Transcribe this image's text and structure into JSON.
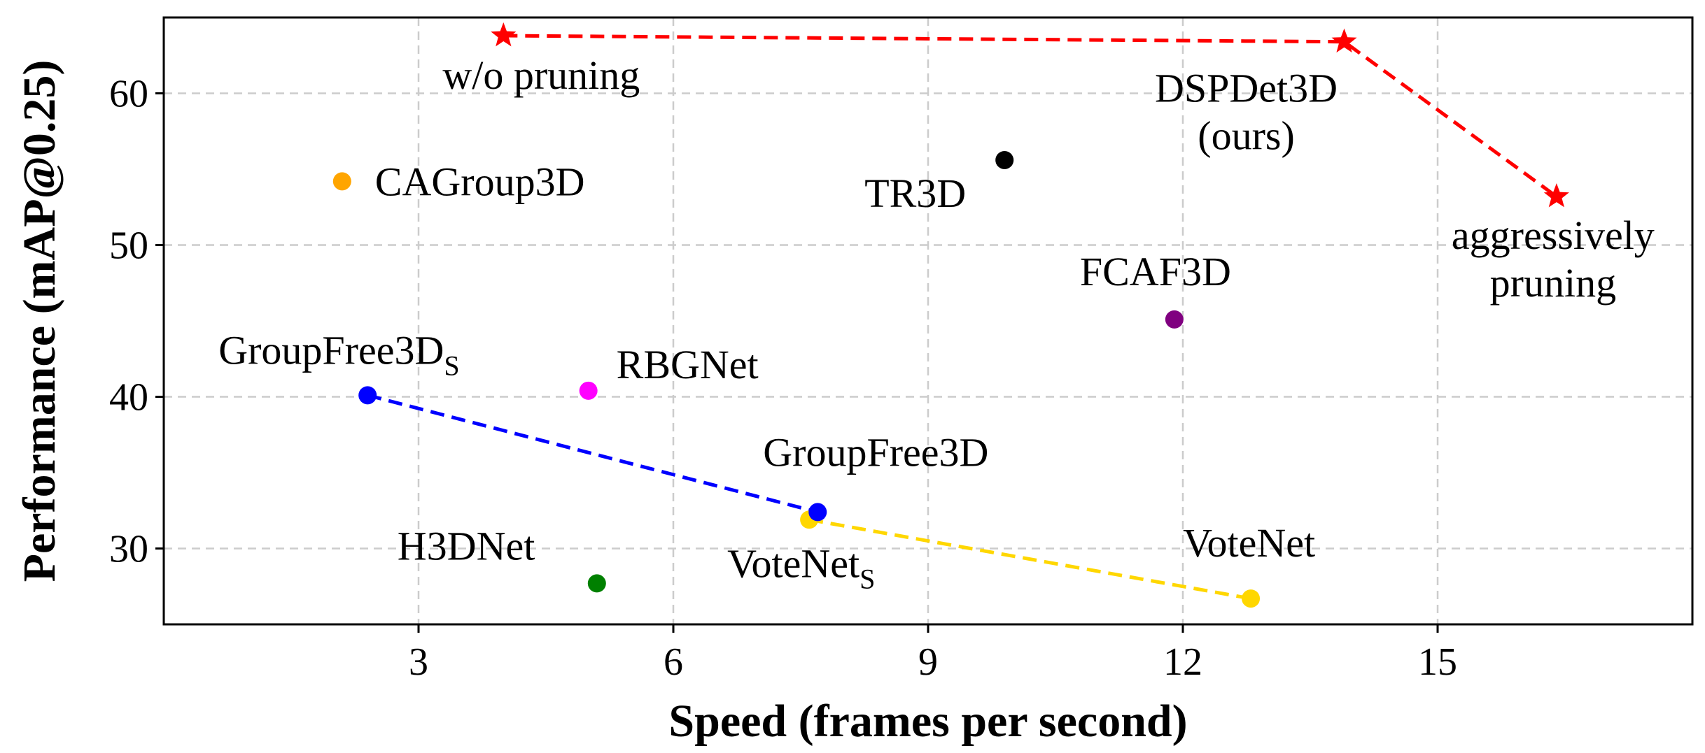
{
  "chart_data": {
    "type": "scatter",
    "xlabel": "Speed (frames per second)",
    "ylabel": "Performance (mAP@0.25)",
    "xlim": [
      0,
      18
    ],
    "ylim": [
      25,
      65
    ],
    "xticks": [
      3,
      6,
      9,
      12,
      15
    ],
    "yticks": [
      30,
      40,
      50,
      60
    ],
    "grid": true,
    "points": [
      {
        "label": "CAGroup3D",
        "sub": "",
        "x": 2.1,
        "y": 54.2,
        "color": "#ffa500",
        "marker": "circle"
      },
      {
        "label": "GroupFree3D",
        "sub": "S",
        "x": 2.4,
        "y": 40.1,
        "color": "#0000ff",
        "marker": "circle"
      },
      {
        "label": "RBGNet",
        "sub": "",
        "x": 5.0,
        "y": 40.4,
        "color": "#ff00ff",
        "marker": "circle"
      },
      {
        "label": "H3DNet",
        "sub": "",
        "x": 5.1,
        "y": 27.7,
        "color": "#008000",
        "marker": "circle"
      },
      {
        "label": "VoteNet",
        "sub": "S",
        "x": 7.6,
        "y": 31.9,
        "color": "#ffd700",
        "marker": "circle"
      },
      {
        "label": "GroupFree3D",
        "sub": "",
        "x": 7.7,
        "y": 32.4,
        "color": "#0000ff",
        "marker": "circle"
      },
      {
        "label": "TR3D",
        "sub": "",
        "x": 9.9,
        "y": 55.6,
        "color": "#000000",
        "marker": "circle"
      },
      {
        "label": "FCAF3D",
        "sub": "",
        "x": 11.9,
        "y": 45.1,
        "color": "#800080",
        "marker": "circle"
      },
      {
        "label": "VoteNet",
        "sub": "",
        "x": 12.8,
        "y": 26.7,
        "color": "#ffd700",
        "marker": "circle"
      },
      {
        "label": "w/o pruning",
        "sub": "",
        "x": 4.0,
        "y": 63.8,
        "color": "#ff0000",
        "marker": "star"
      },
      {
        "label": "DSPDet3D\n(ours)",
        "sub": "",
        "x": 13.9,
        "y": 63.4,
        "color": "#ff0000",
        "marker": "star"
      },
      {
        "label": "aggressively\npruning",
        "sub": "",
        "x": 16.4,
        "y": 53.2,
        "color": "#ff0000",
        "marker": "star"
      }
    ],
    "lines": [
      {
        "color": "#ff0000",
        "style": "dashed",
        "points": [
          [
            4.0,
            63.8
          ],
          [
            13.9,
            63.4
          ],
          [
            16.4,
            53.2
          ]
        ]
      },
      {
        "color": "#0000ff",
        "style": "dashed",
        "points": [
          [
            2.4,
            40.1
          ],
          [
            7.7,
            32.4
          ]
        ]
      },
      {
        "color": "#ffd700",
        "style": "dashed",
        "points": [
          [
            7.6,
            31.9
          ],
          [
            12.8,
            26.7
          ]
        ]
      }
    ]
  }
}
